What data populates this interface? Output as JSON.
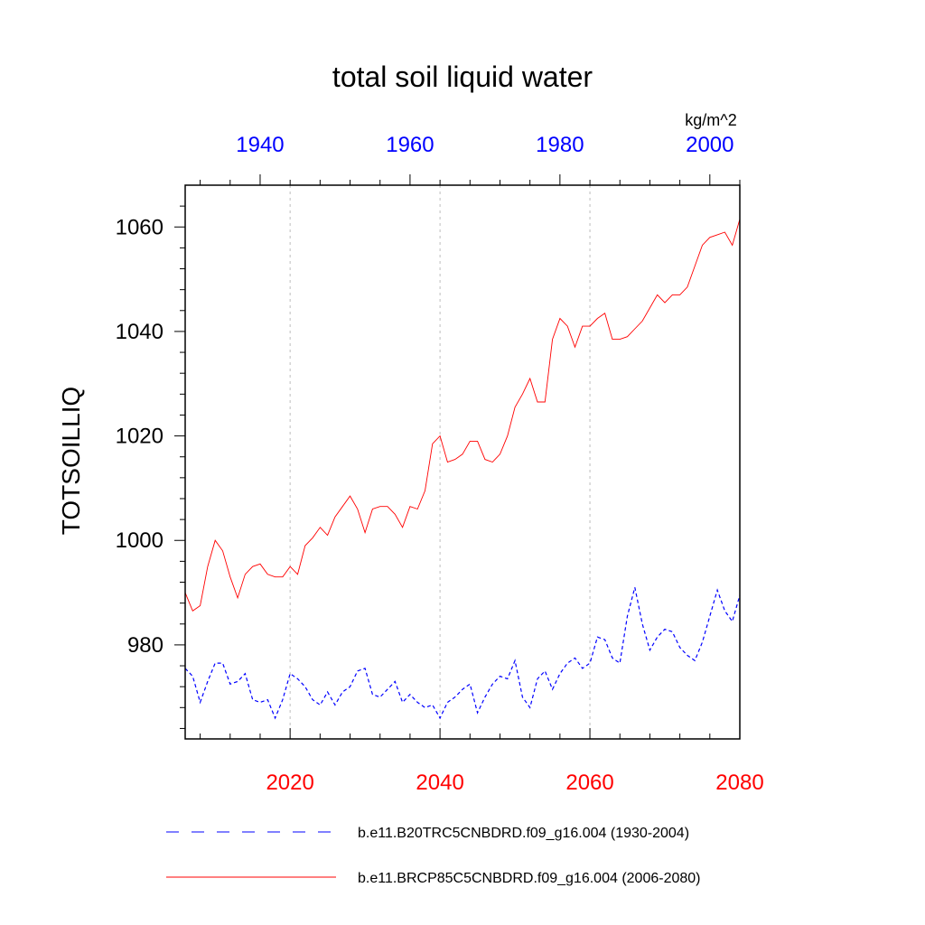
{
  "chart_data": {
    "type": "line",
    "title": "total soil liquid water",
    "ylabel": "TOTSOILLIQ",
    "units": "kg/m^2",
    "ylim": [
      962,
      1068
    ],
    "yticks": [
      980,
      1000,
      1020,
      1040,
      1060
    ],
    "grid": "vertical-dashed",
    "legend_position": "bottom",
    "bottom_axis": {
      "color": "#ff0000",
      "range": [
        2006,
        2080
      ],
      "ticks": [
        2020,
        2040,
        2060,
        2080
      ]
    },
    "top_axis": {
      "color": "#0000ff",
      "range": [
        1930,
        2004
      ],
      "ticks": [
        1940,
        1960,
        1980,
        2000
      ]
    },
    "series": [
      {
        "name": "b.e11.B20TRC5CNBDRD.f09_g16.004 (1930-2004)",
        "axis": "top",
        "color": "#0000ff",
        "dash": "dashed",
        "x_start": 1930,
        "values": [
          975.5,
          974.0,
          969.0,
          973.0,
          976.5,
          976.5,
          972.5,
          973.0,
          974.5,
          969.5,
          969.0,
          969.5,
          966.0,
          969.5,
          974.5,
          973.5,
          972.0,
          969.5,
          968.5,
          971.0,
          968.5,
          971.0,
          972.0,
          975.0,
          975.5,
          970.5,
          970.0,
          971.5,
          973.0,
          969.0,
          970.5,
          969.0,
          968.0,
          968.5,
          966.0,
          969.0,
          970.0,
          971.5,
          972.5,
          967.0,
          970.0,
          972.5,
          974.0,
          973.5,
          977.0,
          970.0,
          968.0,
          973.5,
          975.0,
          971.5,
          974.5,
          976.5,
          977.5,
          975.5,
          976.5,
          981.5,
          981.0,
          977.5,
          976.5,
          985.5,
          991.0,
          984.0,
          979.0,
          981.5,
          983.0,
          982.5,
          979.5,
          978.0,
          977.0,
          980.5,
          985.5,
          990.5,
          986.5,
          984.5,
          989.5
        ]
      },
      {
        "name": "b.e11.BRCP85C5CNBDRD.f09_g16.004 (2006-2080)",
        "axis": "bottom",
        "color": "#ff0000",
        "dash": "solid",
        "x_start": 2006,
        "values": [
          990.0,
          986.5,
          987.5,
          995.0,
          1000.0,
          998.0,
          993.0,
          989.0,
          993.5,
          995.0,
          995.5,
          993.5,
          993.0,
          993.0,
          995.0,
          993.5,
          999.0,
          1000.5,
          1002.5,
          1001.0,
          1004.5,
          1006.5,
          1008.5,
          1006.0,
          1001.5,
          1006.0,
          1006.5,
          1006.5,
          1005.0,
          1002.5,
          1006.5,
          1006.0,
          1009.5,
          1018.5,
          1020.0,
          1015.0,
          1015.5,
          1016.5,
          1019.0,
          1019.0,
          1015.5,
          1015.0,
          1016.5,
          1020.0,
          1025.5,
          1028.0,
          1031.0,
          1026.5,
          1026.5,
          1038.5,
          1042.5,
          1041.0,
          1037.0,
          1041.0,
          1041.0,
          1042.5,
          1043.5,
          1038.5,
          1038.5,
          1039.0,
          1040.5,
          1042.0,
          1044.5,
          1047.0,
          1045.5,
          1047.0,
          1047.0,
          1048.5,
          1052.5,
          1056.5,
          1058.0,
          1058.5,
          1059.0,
          1056.5,
          1061.5
        ]
      }
    ]
  }
}
